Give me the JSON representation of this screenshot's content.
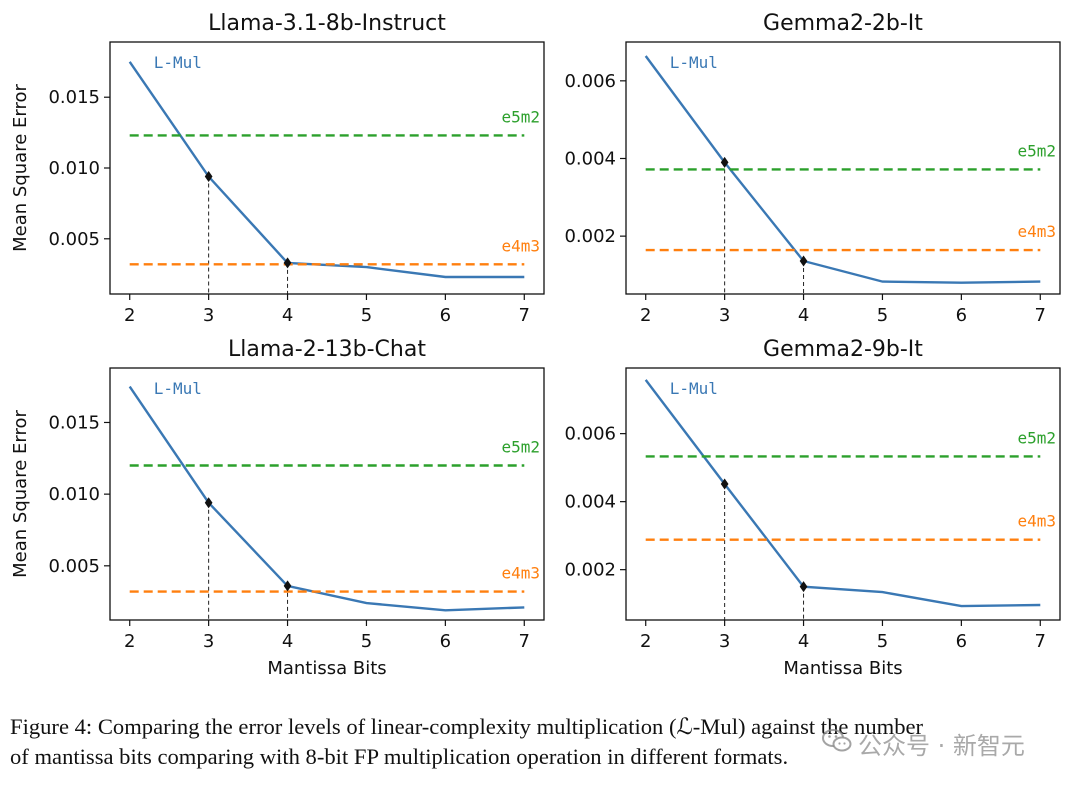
{
  "chart_data": [
    {
      "type": "line",
      "title": "Llama-3.1-8b-Instruct",
      "xlabel": "",
      "ylabel": "Mean Square Error",
      "x": [
        2,
        3,
        4,
        5,
        6,
        7
      ],
      "xlim": [
        1.75,
        7.25
      ],
      "ylim": [
        0.0011,
        0.0189
      ],
      "yticks": [
        0.005,
        0.01,
        0.015
      ],
      "ytick_labels": [
        "0.005",
        "0.010",
        "0.015"
      ],
      "series": [
        {
          "name": "L-Mul",
          "values": [
            0.0175,
            0.0094,
            0.0033,
            0.003,
            0.0023,
            0.0023
          ],
          "color": "#3a78b4"
        },
        {
          "name": "e5m2",
          "values": [
            0.0123,
            0.0123,
            0.0123,
            0.0123,
            0.0123,
            0.0123
          ],
          "color": "#2ca02c"
        },
        {
          "name": "e4m3",
          "values": [
            0.0032,
            0.0032,
            0.0032,
            0.0032,
            0.0032,
            0.0032
          ],
          "color": "#ff7f0e"
        }
      ],
      "marked_points": [
        {
          "x": 3,
          "y": 0.0094
        },
        {
          "x": 4,
          "y": 0.0033
        }
      ]
    },
    {
      "type": "line",
      "title": "Gemma2-2b-It",
      "xlabel": "",
      "ylabel": "",
      "x": [
        2,
        3,
        4,
        5,
        6,
        7
      ],
      "xlim": [
        1.75,
        7.25
      ],
      "ylim": [
        0.00051,
        0.007
      ],
      "yticks": [
        0.002,
        0.004,
        0.006
      ],
      "ytick_labels": [
        "0.002",
        "0.004",
        "0.006"
      ],
      "series": [
        {
          "name": "L-Mul",
          "values": [
            0.00664,
            0.0039,
            0.00136,
            0.00083,
            0.0008,
            0.00083
          ],
          "color": "#3a78b4"
        },
        {
          "name": "e5m2",
          "values": [
            0.00372,
            0.00372,
            0.00372,
            0.00372,
            0.00372,
            0.00372
          ],
          "color": "#2ca02c"
        },
        {
          "name": "e4m3",
          "values": [
            0.00164,
            0.00164,
            0.00164,
            0.00164,
            0.00164,
            0.00164
          ],
          "color": "#ff7f0e"
        }
      ],
      "marked_points": [
        {
          "x": 3,
          "y": 0.0039
        },
        {
          "x": 4,
          "y": 0.00136
        }
      ]
    },
    {
      "type": "line",
      "title": "Llama-2-13b-Chat",
      "xlabel": "Mantissa Bits",
      "ylabel": "Mean Square Error",
      "x": [
        2,
        3,
        4,
        5,
        6,
        7
      ],
      "xlim": [
        1.75,
        7.25
      ],
      "ylim": [
        0.00122,
        0.0188
      ],
      "yticks": [
        0.005,
        0.01,
        0.015
      ],
      "ytick_labels": [
        "0.005",
        "0.010",
        "0.015"
      ],
      "series": [
        {
          "name": "L-Mul",
          "values": [
            0.0175,
            0.0094,
            0.0036,
            0.0024,
            0.0019,
            0.0021
          ],
          "color": "#3a78b4"
        },
        {
          "name": "e5m2",
          "values": [
            0.012,
            0.012,
            0.012,
            0.012,
            0.012,
            0.012
          ],
          "color": "#2ca02c"
        },
        {
          "name": "e4m3",
          "values": [
            0.0032,
            0.0032,
            0.0032,
            0.0032,
            0.0032,
            0.0032
          ],
          "color": "#ff7f0e"
        }
      ],
      "marked_points": [
        {
          "x": 3,
          "y": 0.0094
        },
        {
          "x": 4,
          "y": 0.0036
        }
      ]
    },
    {
      "type": "line",
      "title": "Gemma2-9b-It",
      "xlabel": "Mantissa Bits",
      "ylabel": "",
      "x": [
        2,
        3,
        4,
        5,
        6,
        7
      ],
      "xlim": [
        1.75,
        7.25
      ],
      "ylim": [
        0.00052,
        0.00793
      ],
      "yticks": [
        0.002,
        0.004,
        0.006
      ],
      "ytick_labels": [
        "0.002",
        "0.004",
        "0.006"
      ],
      "series": [
        {
          "name": "L-Mul",
          "values": [
            0.00758,
            0.00452,
            0.0015,
            0.00134,
            0.00093,
            0.00096
          ],
          "color": "#3a78b4"
        },
        {
          "name": "e5m2",
          "values": [
            0.00533,
            0.00533,
            0.00533,
            0.00533,
            0.00533,
            0.00533
          ],
          "color": "#2ca02c"
        },
        {
          "name": "e4m3",
          "values": [
            0.00288,
            0.00288,
            0.00288,
            0.00288,
            0.00288,
            0.00288
          ],
          "color": "#ff7f0e"
        }
      ],
      "marked_points": [
        {
          "x": 3,
          "y": 0.00452
        },
        {
          "x": 4,
          "y": 0.0015
        }
      ]
    }
  ],
  "caption": {
    "line1": "Figure 4: Comparing the error levels of linear-complexity multiplication (ℒ-Mul) against the number",
    "line2": "of mantissa bits comparing with 8-bit FP multiplication operation in different formats."
  },
  "watermark": {
    "icon": "wechat-icon",
    "text": "公众号 · 新智元"
  }
}
